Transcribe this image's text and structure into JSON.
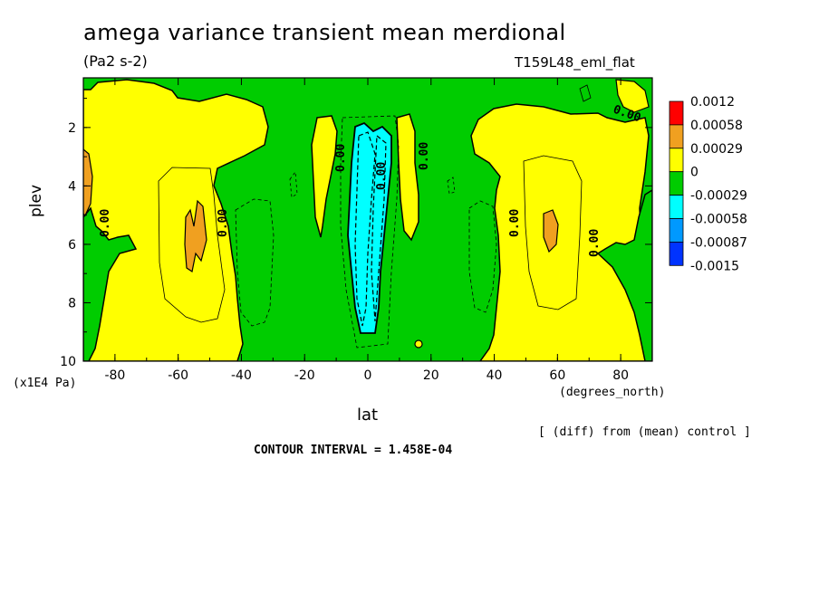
{
  "chart_data": {
    "type": "heatmap",
    "title": "amega variance transient mean merdional",
    "subtitle": "(Pa2 s-2)",
    "experiment_label": "T159L48_eml_flat",
    "xlabel": "lat",
    "x_units": "(degrees_north)",
    "ylabel": "plev",
    "y_units": "(x1E4 Pa)",
    "xlim": [
      -90,
      90
    ],
    "ylim": [
      10,
      0.3
    ],
    "x_ticks": [
      "-80",
      "-60",
      "-40",
      "-20",
      "0",
      "20",
      "40",
      "60",
      "80"
    ],
    "y_ticks": [
      "2",
      "4",
      "6",
      "8",
      "10"
    ],
    "contour_labels": [
      "0.00",
      "0.00",
      "0.00",
      "0.00",
      "0.00",
      "0.00",
      "0.00",
      "0.00"
    ],
    "colorbar": {
      "levels": [
        "0.0012",
        "0.00058",
        "0.00029",
        "0",
        "-0.00029",
        "-0.00058",
        "-0.00087",
        "-0.0015"
      ],
      "colors": [
        "#ff0000",
        "#f0a020",
        "#ffff00",
        "#00cc00",
        "#00ffff",
        "#0099ff",
        "#0033ff"
      ]
    },
    "regions": {
      "background": "green",
      "yellow_lobes": [
        "south subtropics (-85 to -40)",
        "north subtropics (35 to 90)",
        "near -17 and 15 upper levels"
      ],
      "orange_patches": [
        "-56 at plev ~5.5",
        "57 at plev ~5.3",
        "-88 at plev ~3.8"
      ],
      "cyan_band": "equator (-5 to 5), plev 1.5 to 9"
    },
    "diff_note": "[ (diff) from (mean) control ]",
    "contour_interval": "CONTOUR INTERVAL = 1.458E-04"
  },
  "colors": {
    "green": "#00cc00",
    "yellow": "#ffff00",
    "orange": "#f0a020",
    "cyan": "#00ffff",
    "red": "#ff0000",
    "blue_mid": "#0099ff",
    "blue": "#0033ff"
  }
}
